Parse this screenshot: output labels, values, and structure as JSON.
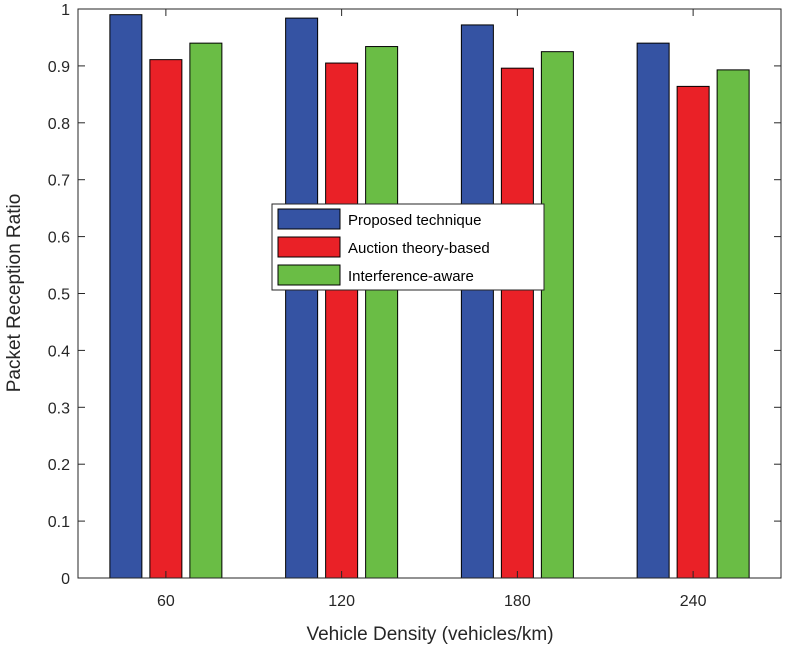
{
  "chart_data": {
    "type": "bar",
    "title": "",
    "xlabel": "Vehicle Density (vehicles/km)",
    "ylabel": "Packet Reception Ratio",
    "categories": [
      "60",
      "120",
      "180",
      "240"
    ],
    "series": [
      {
        "name": "Proposed technique",
        "color": "#3553a3",
        "values": [
          0.99,
          0.984,
          0.972,
          0.94
        ]
      },
      {
        "name": "Auction theory-based",
        "color": "#ea2127",
        "values": [
          0.911,
          0.905,
          0.896,
          0.864
        ]
      },
      {
        "name": "Interference-aware",
        "color": "#6abd45",
        "values": [
          0.94,
          0.934,
          0.925,
          0.893
        ]
      }
    ],
    "ylim": [
      0,
      1
    ],
    "yticks": [
      "0",
      "0.1",
      "0.2",
      "0.3",
      "0.4",
      "0.5",
      "0.6",
      "0.7",
      "0.8",
      "0.9",
      "1"
    ],
    "grid": false,
    "legend_position": "center"
  }
}
